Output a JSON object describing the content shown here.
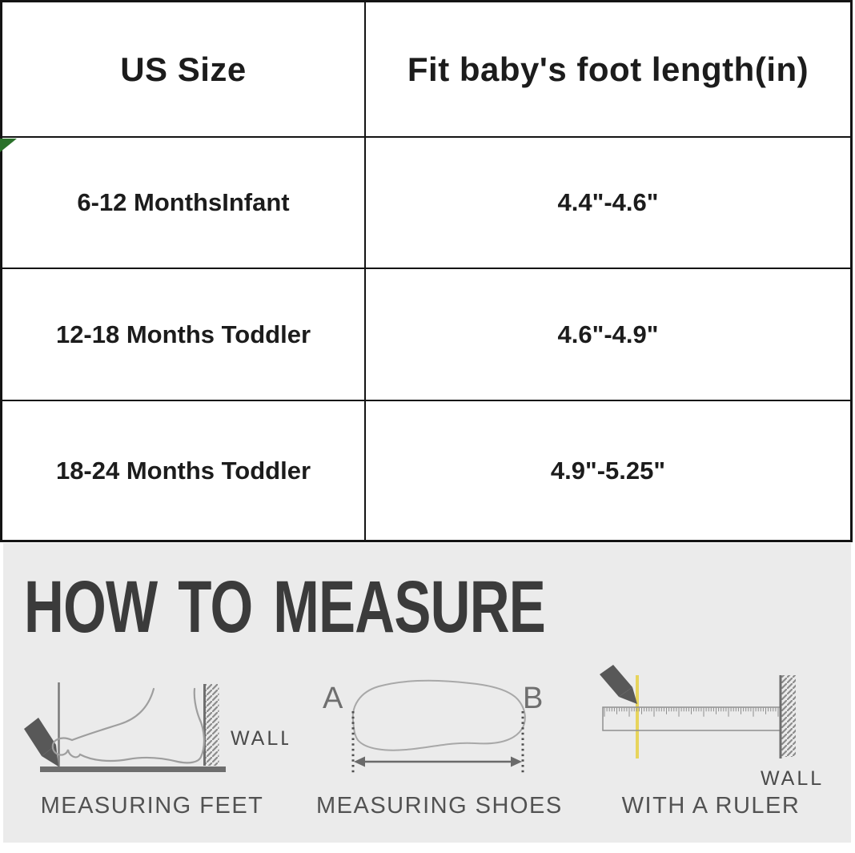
{
  "table": {
    "header": {
      "us_size": "US Size",
      "foot_length": "Fit baby's foot length(in)"
    },
    "rows": [
      {
        "us_size": "6-12 MonthsInfant",
        "foot_length": "4.4\"-4.6\""
      },
      {
        "us_size": "12-18 Months Toddler",
        "foot_length": "4.6\"-4.9\""
      },
      {
        "us_size": "18-24 Months Toddler",
        "foot_length": "4.9\"-5.25\""
      }
    ]
  },
  "measure": {
    "title": "HOW TO MEASURE",
    "feet": {
      "caption": "MEASURING FEET",
      "wall_label": "WALL"
    },
    "shoes": {
      "caption": "MEASURING SHOES",
      "point_a": "A",
      "point_b": "B"
    },
    "ruler": {
      "caption": "WITH A RULER",
      "wall_label": "WALL"
    }
  },
  "colors": {
    "table_border": "#141414",
    "panel_bg": "#ebebeb",
    "heading_text": "#3b3b3b",
    "sketch_line": "#9e9e9e",
    "pencil_gray": "#585858",
    "ground_gray": "#6e6e6e",
    "highlight_yellow": "#e7d45c",
    "marker_green": "#2a712a"
  }
}
